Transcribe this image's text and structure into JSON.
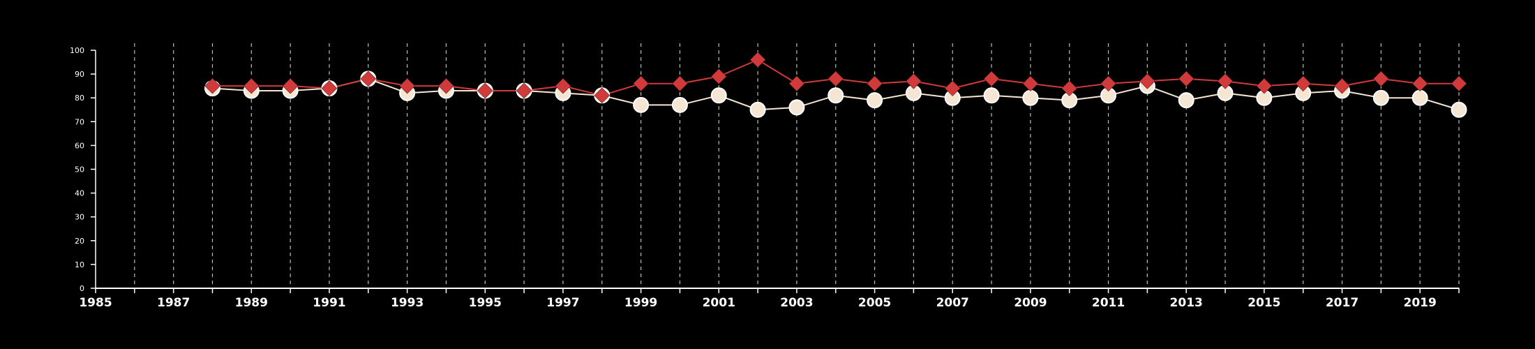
{
  "chart_data": {
    "type": "line",
    "title": "",
    "xlabel": "",
    "ylabel": "",
    "xlim": [
      1985,
      2020
    ],
    "ylim": [
      0,
      100
    ],
    "x_ticks": [
      "1985",
      "1987",
      "1989",
      "1991",
      "1993",
      "1995",
      "1997",
      "1999",
      "2001",
      "2003",
      "2005",
      "2007",
      "2009",
      "2011",
      "2013",
      "2015",
      "2017",
      "2019"
    ],
    "y_ticks": [
      "0",
      "10",
      "20",
      "30",
      "40",
      "50",
      "60",
      "70",
      "80",
      "90",
      "100"
    ],
    "grid": "vertical dashed lines at each year",
    "legend": "none",
    "x": [
      1988,
      1989,
      1990,
      1991,
      1992,
      1993,
      1994,
      1995,
      1996,
      1997,
      1998,
      1999,
      2000,
      2001,
      2002,
      2003,
      2004,
      2005,
      2006,
      2007,
      2008,
      2009,
      2010,
      2011,
      2012,
      2013,
      2014,
      2015,
      2016,
      2017,
      2018,
      2019,
      2020
    ],
    "series": [
      {
        "marker": "circle",
        "color": "#f5e6d3",
        "values": [
          84,
          83,
          83,
          84,
          88,
          82,
          83,
          83,
          83,
          82,
          81,
          77,
          77,
          81,
          75,
          76,
          81,
          79,
          82,
          80,
          81,
          80,
          79,
          81,
          85,
          79,
          82,
          80,
          82,
          83,
          80,
          80,
          75
        ]
      },
      {
        "marker": "diamond",
        "color": "#d03a3a",
        "values": [
          85,
          85,
          85,
          84,
          88,
          85,
          85,
          83,
          83,
          85,
          81,
          86,
          86,
          89,
          96,
          86,
          88,
          86,
          87,
          84,
          88,
          86,
          84,
          86,
          87,
          88,
          87,
          85,
          86,
          85,
          88,
          86,
          86
        ]
      }
    ]
  }
}
